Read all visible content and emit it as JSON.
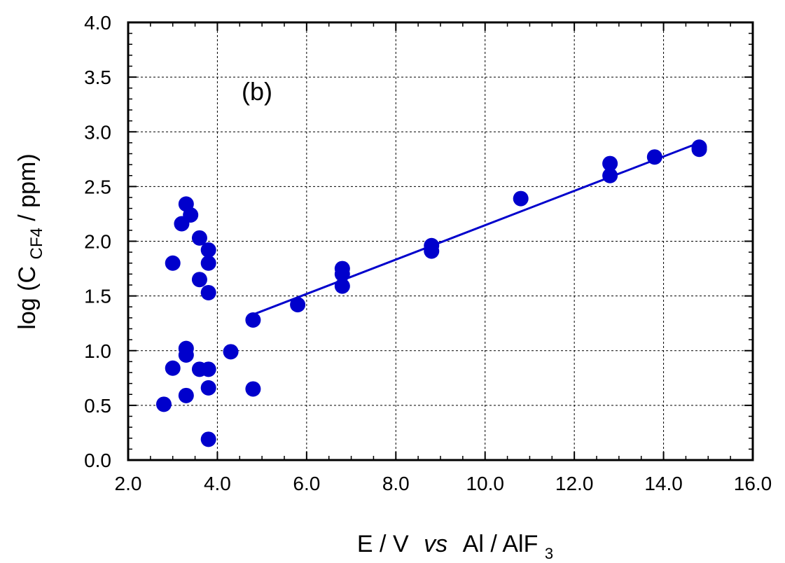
{
  "chart_data": {
    "type": "scatter",
    "title": "",
    "annotation": "(b)",
    "xlabel": {
      "base": "E / V",
      "italic": "vs",
      "rest": "Al / AlF",
      "subscript": "3"
    },
    "ylabel": {
      "prefix": "log (C",
      "subscript": "CF4",
      "suffix": " / ppm)"
    },
    "xlim": [
      2.0,
      16.0
    ],
    "ylim": [
      0.0,
      4.0
    ],
    "xticks": [
      "2.0",
      "4.0",
      "6.0",
      "8.0",
      "10.0",
      "12.0",
      "14.0",
      "16.0"
    ],
    "yticks": [
      "0.0",
      "0.5",
      "1.0",
      "1.5",
      "2.0",
      "2.5",
      "3.0",
      "3.5",
      "4.0"
    ],
    "grid": true,
    "colors": {
      "marker": "#0000cc",
      "line": "#0000cc"
    },
    "points": [
      {
        "x": 2.8,
        "y": 0.51
      },
      {
        "x": 3.0,
        "y": 0.84
      },
      {
        "x": 3.0,
        "y": 1.8
      },
      {
        "x": 3.2,
        "y": 2.16
      },
      {
        "x": 3.3,
        "y": 2.34
      },
      {
        "x": 3.4,
        "y": 2.24
      },
      {
        "x": 3.3,
        "y": 1.02
      },
      {
        "x": 3.3,
        "y": 0.96
      },
      {
        "x": 3.3,
        "y": 0.59
      },
      {
        "x": 3.6,
        "y": 2.03
      },
      {
        "x": 3.6,
        "y": 1.65
      },
      {
        "x": 3.6,
        "y": 0.83
      },
      {
        "x": 3.8,
        "y": 1.92
      },
      {
        "x": 3.8,
        "y": 1.8
      },
      {
        "x": 3.8,
        "y": 1.53
      },
      {
        "x": 3.8,
        "y": 0.83
      },
      {
        "x": 3.8,
        "y": 0.66
      },
      {
        "x": 3.8,
        "y": 0.19
      },
      {
        "x": 4.3,
        "y": 0.99
      },
      {
        "x": 4.8,
        "y": 1.28
      },
      {
        "x": 4.8,
        "y": 0.65
      },
      {
        "x": 5.8,
        "y": 1.42
      },
      {
        "x": 6.8,
        "y": 1.75
      },
      {
        "x": 6.8,
        "y": 1.7
      },
      {
        "x": 6.8,
        "y": 1.59
      },
      {
        "x": 8.8,
        "y": 1.96
      },
      {
        "x": 8.8,
        "y": 1.91
      },
      {
        "x": 10.8,
        "y": 2.39
      },
      {
        "x": 12.8,
        "y": 2.71
      },
      {
        "x": 12.8,
        "y": 2.6
      },
      {
        "x": 13.8,
        "y": 2.77
      },
      {
        "x": 14.8,
        "y": 2.86
      },
      {
        "x": 14.8,
        "y": 2.84
      }
    ],
    "fit_line": {
      "x": [
        4.8,
        14.8
      ],
      "y": [
        1.33,
        2.9
      ]
    }
  }
}
